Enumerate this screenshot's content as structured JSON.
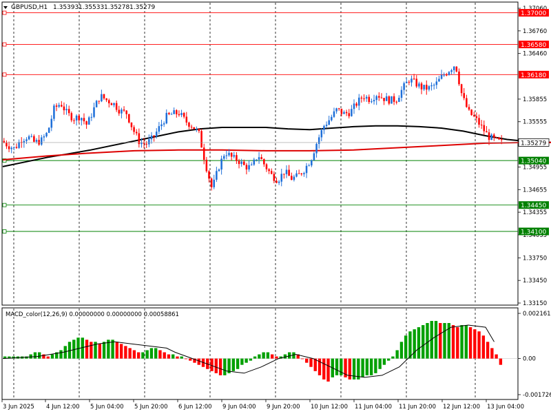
{
  "header": {
    "symbol_tf": "GBPUSD,H1",
    "open": "1.35393",
    "high": "1.35533",
    "low": "1.35278",
    "close": "1.35279"
  },
  "colors": {
    "bull_candle": "#1e6fd9",
    "bear_candle": "#ff0000",
    "ma_slow": "#000000",
    "ma_fast": "#dd0000",
    "resistance_line": "#ff0000",
    "support_line": "#008000",
    "macd_positive": "#00a000",
    "macd_negative": "#ff0000",
    "macd_signal": "#000000",
    "grid": "#000000",
    "background": "#ffffff"
  },
  "price_axis": {
    "ticks": [
      "1.37060",
      "1.36760",
      "1.36460",
      "1.35855",
      "1.35555",
      "1.34955",
      "1.34655",
      "1.34355",
      "1.34055",
      "1.33750",
      "1.33450",
      "1.33150"
    ]
  },
  "levels": {
    "resistance": [
      "1.37000",
      "1.36580",
      "1.36180"
    ],
    "support": [
      "1.35040",
      "1.34450",
      "1.34100"
    ],
    "current_price": "1.35279"
  },
  "time_axis": {
    "labels": [
      "3 Jun 2025",
      "4 Jun 12:00",
      "5 Jun 04:00",
      "5 Jun 20:00",
      "6 Jun 12:00",
      "9 Jun 04:00",
      "9 Jun 20:00",
      "10 Jun 12:00",
      "11 Jun 04:00",
      "11 Jun 20:00",
      "12 Jun 12:00",
      "13 Jun 04:00"
    ]
  },
  "macd": {
    "title": "MACD_color(12,26,9) 0.00000000 0.00000000 0.00058861",
    "ticks": [
      "0.0021617",
      "0.00",
      "-0.0017265"
    ]
  },
  "chart_data": {
    "type": "candlestick",
    "symbol": "GBPUSD",
    "timeframe": "H1",
    "ylim": [
      1.3315,
      1.3706
    ],
    "candles_count": 200,
    "price_path": [
      [
        0,
        1.353
      ],
      [
        6,
        1.3524
      ],
      [
        12,
        1.352
      ],
      [
        18,
        1.3532
      ],
      [
        24,
        1.3536
      ],
      [
        30,
        1.3528
      ],
      [
        36,
        1.353
      ],
      [
        42,
        1.3541
      ],
      [
        48,
        1.3573
      ],
      [
        54,
        1.358
      ],
      [
        60,
        1.3566
      ],
      [
        66,
        1.356
      ],
      [
        72,
        1.3563
      ],
      [
        78,
        1.3551
      ],
      [
        84,
        1.3572
      ],
      [
        90,
        1.359
      ],
      [
        96,
        1.3584
      ],
      [
        102,
        1.358
      ],
      [
        108,
        1.357
      ],
      [
        114,
        1.3567
      ],
      [
        120,
        1.3545
      ],
      [
        126,
        1.3528
      ],
      [
        132,
        1.3526
      ],
      [
        138,
        1.3534
      ],
      [
        144,
        1.3548
      ],
      [
        150,
        1.3562
      ],
      [
        156,
        1.3566
      ],
      [
        162,
        1.3567
      ],
      [
        168,
        1.3556
      ],
      [
        174,
        1.355
      ],
      [
        180,
        1.354
      ],
      [
        186,
        1.35
      ],
      [
        192,
        1.3466
      ],
      [
        198,
        1.3495
      ],
      [
        204,
        1.3516
      ],
      [
        210,
        1.3508
      ],
      [
        216,
        1.3504
      ],
      [
        222,
        1.3496
      ],
      [
        228,
        1.3495
      ],
      [
        234,
        1.3512
      ],
      [
        240,
        1.3498
      ],
      [
        246,
        1.3485
      ],
      [
        252,
        1.3478
      ],
      [
        258,
        1.349
      ],
      [
        264,
        1.348
      ],
      [
        270,
        1.3483
      ],
      [
        276,
        1.3492
      ],
      [
        282,
        1.3505
      ],
      [
        288,
        1.353
      ],
      [
        294,
        1.355
      ],
      [
        300,
        1.356
      ],
      [
        306,
        1.3572
      ],
      [
        312,
        1.3566
      ],
      [
        318,
        1.3568
      ],
      [
        324,
        1.358
      ],
      [
        330,
        1.359
      ],
      [
        336,
        1.3585
      ],
      [
        342,
        1.3592
      ],
      [
        348,
        1.3587
      ],
      [
        354,
        1.3584
      ],
      [
        360,
        1.3585
      ],
      [
        366,
        1.36
      ],
      [
        372,
        1.3612
      ],
      [
        378,
        1.3606
      ],
      [
        384,
        1.36
      ],
      [
        390,
        1.36
      ],
      [
        396,
        1.3605
      ],
      [
        402,
        1.3616
      ],
      [
        408,
        1.3624
      ],
      [
        414,
        1.3632
      ],
      [
        420,
        1.359
      ],
      [
        426,
        1.3568
      ],
      [
        432,
        1.356
      ],
      [
        438,
        1.3548
      ],
      [
        444,
        1.3536
      ],
      [
        450,
        1.3531
      ],
      [
        456,
        1.3528
      ]
    ],
    "ma_slow_path": [
      [
        0,
        1.3496
      ],
      [
        20,
        1.3502
      ],
      [
        40,
        1.3508
      ],
      [
        60,
        1.3513
      ],
      [
        80,
        1.3518
      ],
      [
        100,
        1.3524
      ],
      [
        120,
        1.353
      ],
      [
        140,
        1.3536
      ],
      [
        160,
        1.3542
      ],
      [
        180,
        1.3546
      ],
      [
        200,
        1.3548
      ],
      [
        220,
        1.3548
      ],
      [
        240,
        1.3548
      ],
      [
        260,
        1.3546
      ],
      [
        280,
        1.3545
      ],
      [
        300,
        1.3547
      ],
      [
        320,
        1.3549
      ],
      [
        340,
        1.355
      ],
      [
        360,
        1.355
      ],
      [
        380,
        1.3549
      ],
      [
        400,
        1.3547
      ],
      [
        420,
        1.3543
      ],
      [
        440,
        1.3537
      ],
      [
        460,
        1.3532
      ],
      [
        480,
        1.3529
      ],
      [
        500,
        1.3528
      ],
      [
        520,
        1.3528
      ],
      [
        540,
        1.3529
      ],
      [
        560,
        1.3531
      ],
      [
        580,
        1.3533
      ],
      [
        600,
        1.3533
      ],
      [
        620,
        1.3534
      ],
      [
        640,
        1.3536
      ],
      [
        660,
        1.3538
      ],
      [
        680,
        1.354
      ],
      [
        700,
        1.3543
      ],
      [
        720,
        1.3541
      ]
    ],
    "ma_fast_path": [
      [
        0,
        1.3505
      ],
      [
        40,
        1.351
      ],
      [
        80,
        1.3514
      ],
      [
        120,
        1.3517
      ],
      [
        160,
        1.3518
      ],
      [
        200,
        1.3518
      ],
      [
        240,
        1.3517
      ],
      [
        280,
        1.3517
      ],
      [
        320,
        1.3518
      ],
      [
        360,
        1.3521
      ],
      [
        400,
        1.3524
      ],
      [
        440,
        1.3527
      ],
      [
        480,
        1.3528
      ],
      [
        520,
        1.3528
      ],
      [
        560,
        1.3529
      ],
      [
        600,
        1.3531
      ],
      [
        640,
        1.3533
      ],
      [
        680,
        1.3537
      ],
      [
        720,
        1.3544
      ]
    ],
    "macd_histogram": [
      0.0001,
      0.0001,
      0.0001,
      0.0001,
      0.0001,
      0.0001,
      0.0002,
      0.0003,
      0.0003,
      0.0002,
      0.0001,
      0.0002,
      0.0003,
      0.0004,
      0.0006,
      0.0008,
      0.0009,
      0.001,
      0.001,
      0.0009,
      0.0008,
      0.0008,
      0.0007,
      0.0008,
      0.0009,
      0.0009,
      0.0008,
      0.0007,
      0.0006,
      0.0005,
      0.0004,
      0.0003,
      0.0003,
      0.0004,
      0.0005,
      0.0005,
      0.0004,
      0.0003,
      0.0002,
      0.0002,
      0.0001,
      0.0001,
      0.0,
      -0.0001,
      -0.0002,
      -0.0003,
      -0.0004,
      -0.0005,
      -0.0006,
      -0.0007,
      -0.0008,
      -0.0008,
      -0.0007,
      -0.0006,
      -0.0005,
      -0.0003,
      -0.0002,
      -0.0001,
      0.0001,
      0.0002,
      0.0003,
      0.0003,
      0.0002,
      0.0001,
      0.0001,
      0.0002,
      0.0003,
      0.0003,
      0.0002,
      0.0,
      -0.0002,
      -0.0004,
      -0.0006,
      -0.0008,
      -0.001,
      -0.0011,
      -0.0009,
      -0.0008,
      -0.0008,
      -0.0009,
      -0.001,
      -0.001,
      -0.001,
      -0.0009,
      -0.0008,
      -0.0008,
      -0.0007,
      -0.0005,
      -0.0003,
      -0.0001,
      0.0001,
      0.0004,
      0.0008,
      0.0011,
      0.0013,
      0.0014,
      0.0015,
      0.0016,
      0.0017,
      0.0018,
      0.0018,
      0.0017,
      0.0017,
      0.0017,
      0.0016,
      0.0015,
      0.0016,
      0.0016,
      0.0015,
      0.0014,
      0.0013,
      0.0011,
      0.0008,
      0.0005,
      0.0002,
      -0.0003
    ],
    "macd_signal_path": [
      [
        0,
        0.0
      ],
      [
        8,
        0.0001
      ],
      [
        14,
        0.0003
      ],
      [
        18,
        0.0005
      ],
      [
        22,
        0.0007
      ],
      [
        26,
        0.0008
      ],
      [
        30,
        0.0007
      ],
      [
        34,
        0.0006
      ],
      [
        38,
        0.0005
      ],
      [
        40,
        0.0003
      ],
      [
        44,
        0.0
      ],
      [
        48,
        -0.0003
      ],
      [
        52,
        -0.0006
      ],
      [
        56,
        -0.0007
      ],
      [
        60,
        -0.0004
      ],
      [
        64,
        0.0
      ],
      [
        68,
        0.0002
      ],
      [
        72,
        0.0
      ],
      [
        76,
        -0.0004
      ],
      [
        80,
        -0.0008
      ],
      [
        84,
        -0.0009
      ],
      [
        88,
        -0.0008
      ],
      [
        92,
        -0.0004
      ],
      [
        96,
        0.0004
      ],
      [
        100,
        0.001
      ],
      [
        104,
        0.0015
      ],
      [
        108,
        0.0016
      ],
      [
        112,
        0.0015
      ],
      [
        114,
        0.0008
      ]
    ]
  }
}
